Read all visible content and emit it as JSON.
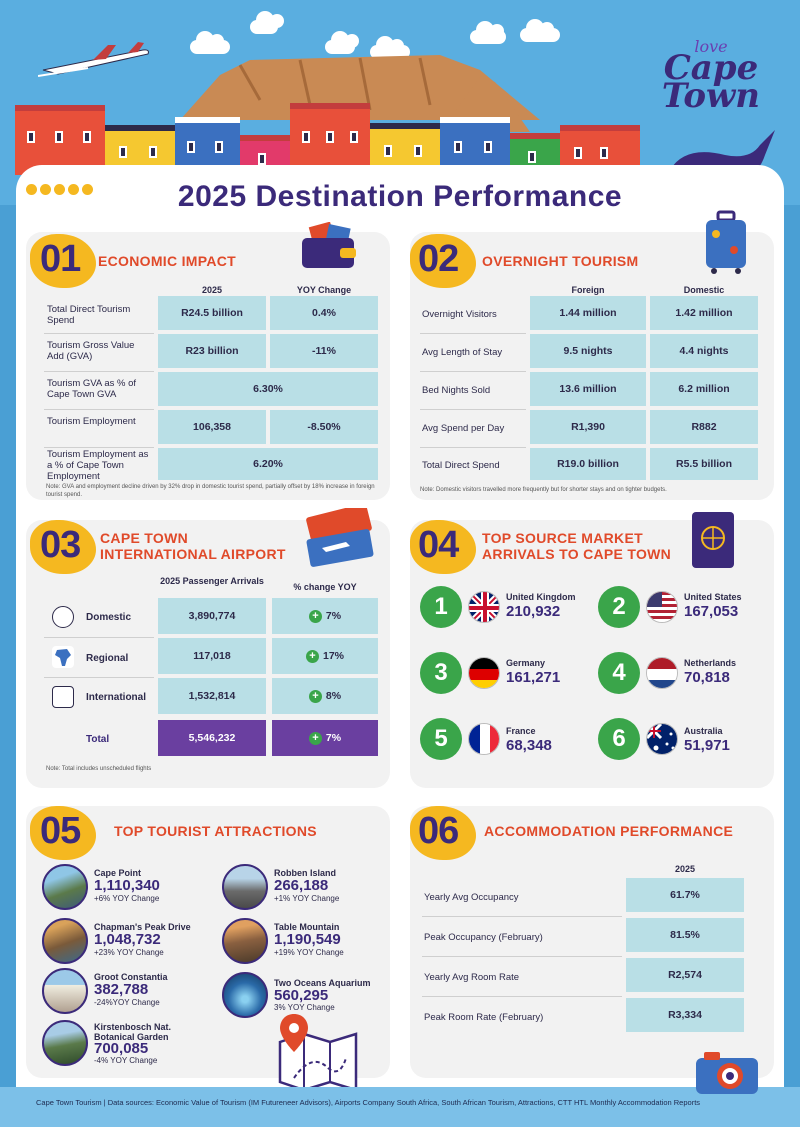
{
  "header": {
    "title": "2025 Destination Performance",
    "logo_love": "love",
    "logo_cape": "Cape",
    "logo_town": "Town"
  },
  "economic": {
    "number": "01",
    "title": "ECONOMIC IMPACT",
    "col_2025": "2025",
    "col_yoy": "YOY Change",
    "rows": [
      {
        "label": "Total Direct Tourism Spend",
        "value": "R24.5 billion",
        "change": "0.4%"
      },
      {
        "label": "Tourism Gross Value Add (GVA)",
        "value": "R23 billion",
        "change": "-11%"
      },
      {
        "label": "Tourism GVA as % of Cape Town GVA",
        "merged": "6.30%"
      },
      {
        "label": "Tourism Employment",
        "value": "106,358",
        "change": "-8.50%"
      },
      {
        "label": "Tourism Employment as a % of Cape Town Employment",
        "merged": "6.20%"
      }
    ],
    "note": "Note: GVA and employment decline driven by 32% drop in domestic tourist spend, partially offset by 18% increase in foreign tourist spend."
  },
  "overnight": {
    "number": "02",
    "title": "OVERNIGHT TOURISM",
    "col_foreign": "Foreign",
    "col_domestic": "Domestic",
    "rows": [
      {
        "label": "Overnight Visitors",
        "foreign": "1.44 million",
        "domestic": "1.42 million"
      },
      {
        "label": "Avg Length of Stay",
        "foreign": "9.5 nights",
        "domestic": "4.4 nights"
      },
      {
        "label": "Bed Nights Sold",
        "foreign": "13.6 million",
        "domestic": "6.2 million"
      },
      {
        "label": "Avg Spend per Day",
        "foreign": "R1,390",
        "domestic": "R882"
      },
      {
        "label": "Total Direct Spend",
        "foreign": "R19.0 billion",
        "domestic": "R5.5 billion"
      }
    ],
    "note": "Note: Domestic visitors travelled more frequently but for shorter stays and on tighter budgets."
  },
  "airport": {
    "number": "03",
    "title_line1": "CAPE TOWN",
    "title_line2": "INTERNATIONAL AIRPORT",
    "col_arrivals": "2025 Passenger Arrivals",
    "col_change": "% change YOY",
    "rows": [
      {
        "label": "Domestic",
        "value": "3,890,774",
        "change": "7%",
        "icon": "south-africa-icon"
      },
      {
        "label": "Regional",
        "value": "117,018",
        "change": "17%",
        "icon": "africa-map-icon"
      },
      {
        "label": "International",
        "value": "1,532,814",
        "change": "8%",
        "icon": "passport-icon"
      }
    ],
    "total": {
      "label": "Total",
      "value": "5,546,232",
      "change": "7%"
    },
    "note": "Note: Total includes unscheduled flights"
  },
  "markets": {
    "number": "04",
    "title_line1": "TOP SOURCE MARKET",
    "title_line2": "ARRIVALS TO CAPE TOWN",
    "items": [
      {
        "rank": "1",
        "country": "United Kingdom",
        "arrivals": "210,932",
        "flag": "uk-flag-icon"
      },
      {
        "rank": "2",
        "country": "United States",
        "arrivals": "167,053",
        "flag": "us-flag-icon"
      },
      {
        "rank": "3",
        "country": "Germany",
        "arrivals": "161,271",
        "flag": "germany-flag-icon"
      },
      {
        "rank": "4",
        "country": "Netherlands",
        "arrivals": "70,818",
        "flag": "netherlands-flag-icon"
      },
      {
        "rank": "5",
        "country": "France",
        "arrivals": "68,348",
        "flag": "france-flag-icon"
      },
      {
        "rank": "6",
        "country": "Australia",
        "arrivals": "51,971",
        "flag": "australia-flag-icon"
      }
    ]
  },
  "attractions": {
    "number": "05",
    "title": "TOP TOURIST ATTRACTIONS",
    "items": [
      {
        "name": "Cape Point",
        "value": "1,110,340",
        "change": "+6% YOY Change"
      },
      {
        "name": "Robben Island",
        "value": "266,188",
        "change": "+1% YOY Change"
      },
      {
        "name": "Chapman's Peak Drive",
        "value": "1,048,732",
        "change": "+23% YOY Change"
      },
      {
        "name": "Table Mountain",
        "value": "1,190,549",
        "change": "+19% YOY Change"
      },
      {
        "name": "Groot Constantia",
        "value": "382,788",
        "change": "-24%YOY Change"
      },
      {
        "name": "Two Oceans Aquarium",
        "value": "560,295",
        "change": "3% YOY Change"
      },
      {
        "name_line1": "Kirstenbosch Nat.",
        "name_line2": "Botanical Garden",
        "value": "700,085",
        "change": "-4% YOY Change"
      }
    ]
  },
  "accommodation": {
    "number": "06",
    "title": "ACCOMMODATION PERFORMANCE",
    "col_2025": "2025",
    "rows": [
      {
        "label": "Yearly Avg Occupancy",
        "value": "61.7%"
      },
      {
        "label": "Peak Occupancy (February)",
        "value": "81.5%"
      },
      {
        "label": "Yearly Avg Room Rate",
        "value": "R2,574"
      },
      {
        "label": "Peak Room Rate (February)",
        "value": "R3,334"
      }
    ]
  },
  "footer": {
    "text": "Cape Town Tourism | Data sources: Economic Value of Tourism (IM Futureneer Advisors), Airports Company South Africa, South African Tourism, Attractions, CTT HTL Monthly Accommodation Reports"
  },
  "colors": {
    "purple": "#3b2a7a",
    "orange": "#e04a2a",
    "yellow": "#f5b820",
    "teal_cell": "#b9dfe6",
    "green": "#3aa54a"
  }
}
